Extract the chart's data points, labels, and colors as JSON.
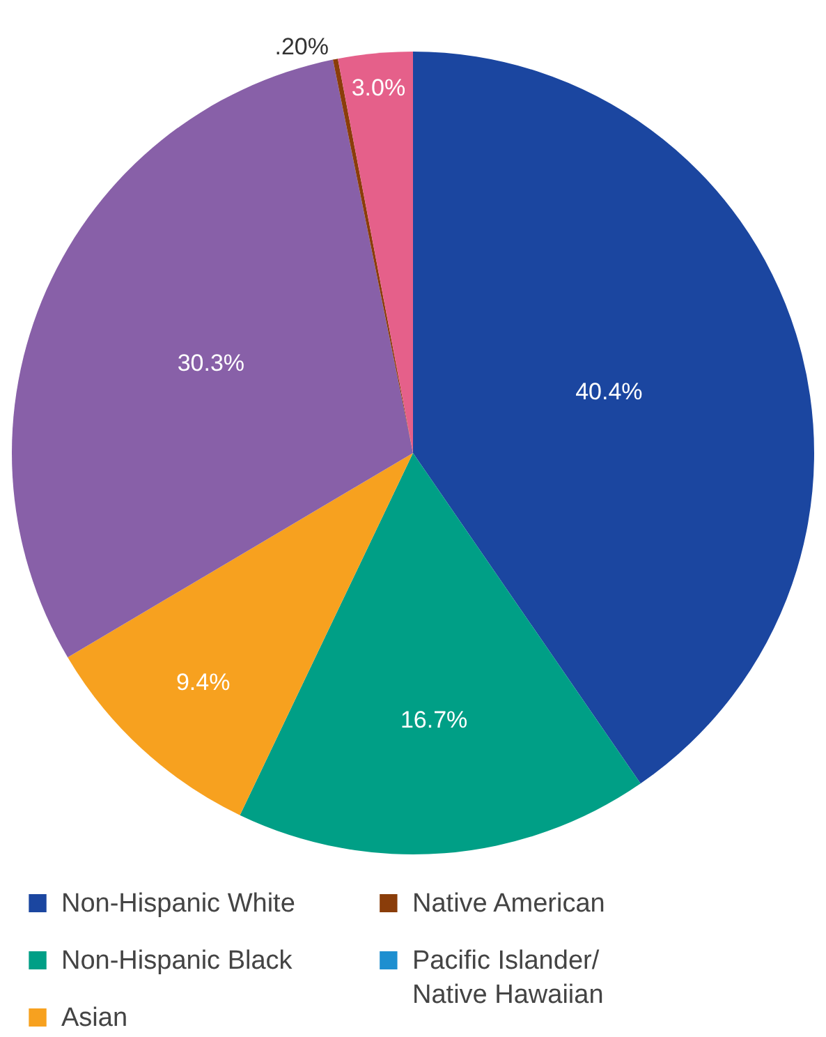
{
  "chart_data": {
    "type": "pie",
    "categories": [
      "Non-Hispanic White",
      "Non-Hispanic Black",
      "Asian",
      null,
      "Native American",
      null,
      "Pacific Islander/\nNative Hawaiian"
    ],
    "values": [
      40.4,
      16.7,
      9.4,
      30.3,
      0.2,
      3.0,
      0
    ],
    "colors": [
      "#1b46a0",
      "#009f86",
      "#f7a11f",
      "#8860a8",
      "#8a3d0a",
      "#e5608a",
      "#1e8fd0"
    ],
    "value_labels": [
      "40.4%",
      "16.7%",
      "9.4%",
      "30.3%",
      ".20%",
      "3.0%",
      null
    ],
    "legend": "bottom"
  }
}
